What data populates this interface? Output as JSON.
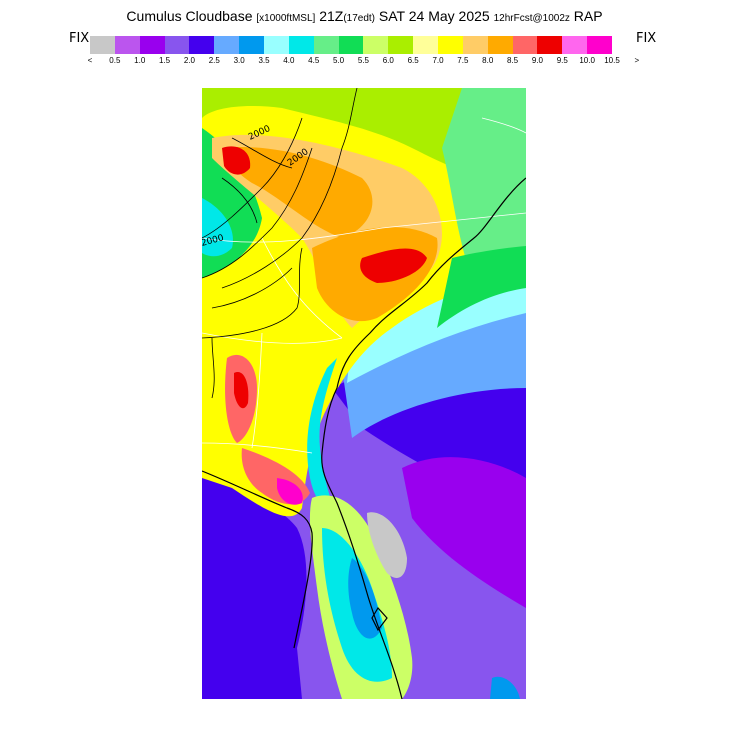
{
  "header": {
    "product": "Cumulus Cloudbase",
    "units": "[x1000ftMSL]",
    "valid_time": "21Z",
    "local_time": "(17edt)",
    "date": "SAT 24 May 2025",
    "forecast": "12hrFcst@1002z",
    "model": "RAP"
  },
  "legend": {
    "fix_left": "FIX",
    "fix_right": "FIX",
    "colors": [
      "#c8c8c8",
      "#bb55ee",
      "#9900ee",
      "#8855ee",
      "#4400ee",
      "#66aaff",
      "#0099ee",
      "#99ffff",
      "#00e8e8",
      "#66ee88",
      "#11dd55",
      "#ccff66",
      "#aaee00",
      "#ffff99",
      "#ffff00",
      "#ffcc66",
      "#ffaa00",
      "#ff6666",
      "#ee0000",
      "#ff66ee",
      "#ff00cc"
    ],
    "tick_labels": [
      "<",
      "0.5",
      "1.0",
      "1.5",
      "2.0",
      "2.5",
      "3.0",
      "3.5",
      "4.0",
      "4.5",
      "5.0",
      "5.5",
      "6.0",
      "6.5",
      "7.0",
      "7.5",
      "8.0",
      "8.5",
      "9.0",
      "9.5",
      "10.0",
      "10.5",
      ">"
    ]
  },
  "map": {
    "contour_labels": [
      "2000",
      "2000",
      "2000"
    ]
  }
}
